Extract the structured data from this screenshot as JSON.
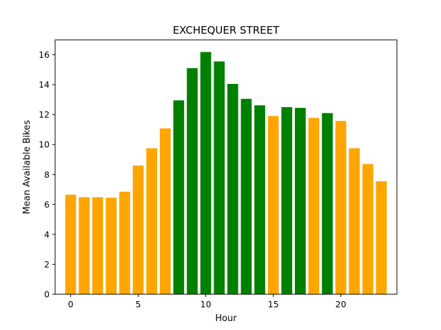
{
  "chart_data": {
    "type": "bar",
    "title": "EXCHEQUER STREET",
    "xlabel": "Hour",
    "ylabel": "Mean Available Bikes",
    "x": [
      0,
      1,
      2,
      3,
      4,
      5,
      6,
      7,
      8,
      9,
      10,
      11,
      12,
      13,
      14,
      15,
      16,
      17,
      18,
      19,
      20,
      21,
      22,
      23
    ],
    "values": [
      6.65,
      6.48,
      6.48,
      6.45,
      6.85,
      8.6,
      9.75,
      11.08,
      12.95,
      15.1,
      16.18,
      15.55,
      14.05,
      13.05,
      12.62,
      11.9,
      12.5,
      12.45,
      11.78,
      12.1,
      11.58,
      9.75,
      8.7,
      7.55
    ],
    "colors": [
      "#FFA500",
      "#FFA500",
      "#FFA500",
      "#FFA500",
      "#FFA500",
      "#FFA500",
      "#FFA500",
      "#FFA500",
      "#008000",
      "#008000",
      "#008000",
      "#008000",
      "#008000",
      "#008000",
      "#008000",
      "#FFA500",
      "#008000",
      "#008000",
      "#FFA500",
      "#008000",
      "#FFA500",
      "#FFA500",
      "#FFA500",
      "#FFA500"
    ],
    "xticks": [
      0,
      5,
      10,
      15,
      20
    ],
    "yticks": [
      0,
      2,
      4,
      6,
      8,
      10,
      12,
      14,
      16
    ],
    "xlim": [
      -1.15,
      24.15
    ],
    "ylim": [
      0,
      16.99
    ],
    "grid": false,
    "legend": "none"
  }
}
